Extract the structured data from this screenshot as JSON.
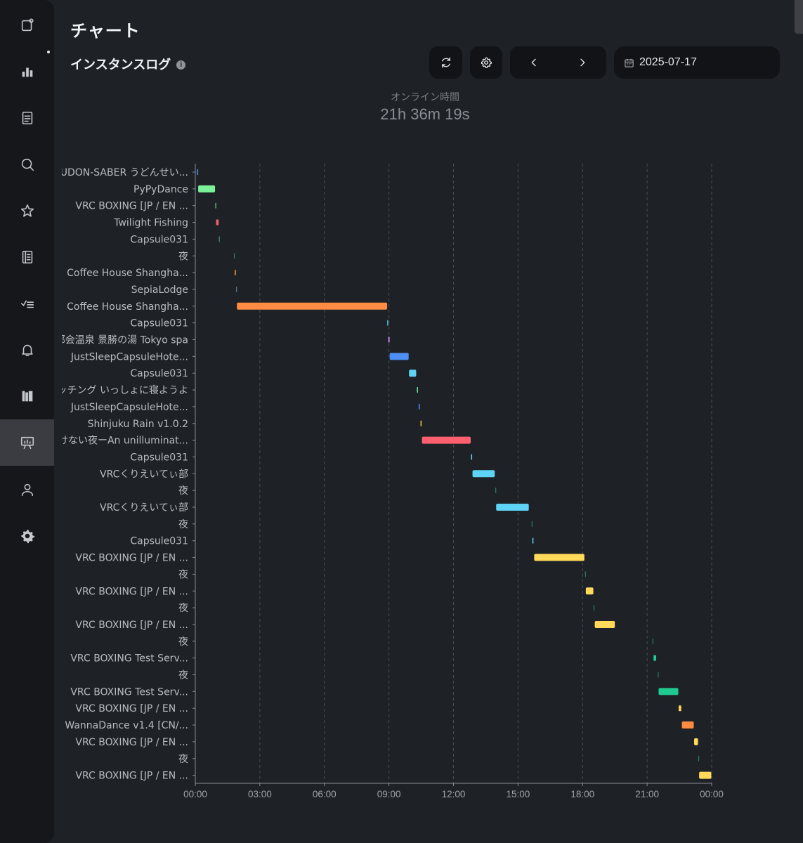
{
  "page": {
    "title": "チャート"
  },
  "section": {
    "title": "インスタンスログ",
    "info_icon": "info-icon"
  },
  "sidebar": {
    "items": [
      {
        "icon": "profile-card-icon",
        "active": false
      },
      {
        "icon": "bar-chart-icon",
        "active": false
      },
      {
        "icon": "document-icon",
        "active": false
      },
      {
        "icon": "search-icon",
        "active": false
      },
      {
        "icon": "star-icon",
        "active": false
      },
      {
        "icon": "notebook-icon",
        "active": false
      },
      {
        "icon": "checklist-icon",
        "active": false
      },
      {
        "icon": "bell-icon",
        "active": false
      },
      {
        "icon": "library-icon",
        "active": false
      },
      {
        "icon": "presentation-chart-icon",
        "active": true
      },
      {
        "icon": "user-icon",
        "active": false
      },
      {
        "icon": "gear-icon",
        "active": false
      }
    ]
  },
  "toolbar": {
    "refresh_icon": "refresh-icon",
    "settings_icon": "gear-icon",
    "prev_icon": "chevron-left-icon",
    "next_icon": "chevron-right-icon",
    "date_icon": "calendar-icon",
    "date_value": "2025-07-17"
  },
  "online": {
    "label": "オンライン時間",
    "value": "21h 36m 19s"
  },
  "chart_data": {
    "type": "bar",
    "orientation": "horizontal-timeline",
    "xlabel": "",
    "ylabel": "",
    "x_range": [
      "00:00",
      "24:00"
    ],
    "x_ticks": [
      "00:00",
      "03:00",
      "06:00",
      "09:00",
      "12:00",
      "15:00",
      "18:00",
      "21:00",
      "00:00"
    ],
    "grid": "vertical-dashed",
    "categories": [
      "UDON-SABER うどんせい...",
      "PyPyDance",
      "VRC BOXING [JP / EN ...",
      "Twilight Fishing",
      "Capsule031",
      "夜",
      "Coffee House Shangha...",
      "SepiaLodge",
      "Coffee House Shangha...",
      "Capsule031",
      "都会温泉 景勝の湯 Tokyo spa",
      "JustSleepCapsuleHote...",
      "Capsule031",
      "マッチング いっしょに寝ようよ",
      "JustSleepCapsuleHote...",
      "Shinjuku Rain v1.0.2",
      "明けない夜ーAn unilluminat...",
      "Capsule031",
      "VRCくりえいてぃ部",
      "夜",
      "VRCくりえいてぃ部",
      "夜",
      "Capsule031",
      "VRC BOXING [JP / EN ...",
      "夜",
      "VRC BOXING [JP / EN ...",
      "夜",
      "VRC BOXING [JP / EN ...",
      "夜",
      "VRC BOXING Test Serv...",
      "夜",
      "VRC BOXING Test Serv...",
      "VRC BOXING [JP / EN ...",
      "WannaDance v1.4 [CN/...",
      "VRC BOXING [JP / EN ...",
      "夜",
      "VRC BOXING [JP / EN ..."
    ],
    "series": [
      {
        "values": [
          {
            "start": "00:05",
            "end": "00:08",
            "color": "#4e8ff5"
          },
          {
            "start": "00:08",
            "end": "00:55",
            "color": "#7bf29a"
          },
          {
            "start": "00:56",
            "end": "00:57",
            "color": "#7bf29a"
          },
          {
            "start": "00:58",
            "end": "01:05",
            "color": "#f25f6a"
          },
          {
            "start": "01:06",
            "end": "01:07",
            "color": "#4fa0a0"
          },
          {
            "start": "01:48",
            "end": "01:49",
            "color": "#2f8f7a"
          },
          {
            "start": "01:50",
            "end": "01:53",
            "color": "#f49a3d"
          },
          {
            "start": "01:54",
            "end": "01:55",
            "color": "#6e8aa0"
          },
          {
            "start": "01:56",
            "end": "08:55",
            "color": "#ff8c42"
          },
          {
            "start": "08:55",
            "end": "08:58",
            "color": "#4fb6d6"
          },
          {
            "start": "08:58",
            "end": "09:02",
            "color": "#c27ce0"
          },
          {
            "start": "09:02",
            "end": "09:55",
            "color": "#4e8ff5"
          },
          {
            "start": "09:56",
            "end": "10:16",
            "color": "#5fd3f5"
          },
          {
            "start": "10:18",
            "end": "10:21",
            "color": "#6ee0a0"
          },
          {
            "start": "10:23",
            "end": "10:26",
            "color": "#4e8ff5"
          },
          {
            "start": "10:28",
            "end": "10:31",
            "color": "#e6c94a"
          },
          {
            "start": "10:32",
            "end": "12:48",
            "color": "#ff5f6e"
          },
          {
            "start": "12:49",
            "end": "12:52",
            "color": "#5fd3f5"
          },
          {
            "start": "12:53",
            "end": "13:55",
            "color": "#5fd3f5"
          },
          {
            "start": "13:57",
            "end": "13:58",
            "color": "#2f8f7a"
          },
          {
            "start": "13:59",
            "end": "15:30",
            "color": "#5fd3f5"
          },
          {
            "start": "15:38",
            "end": "15:39",
            "color": "#2f8f7a"
          },
          {
            "start": "15:40",
            "end": "15:43",
            "color": "#5fd3f5"
          },
          {
            "start": "15:45",
            "end": "18:05",
            "color": "#ffd95a"
          },
          {
            "start": "18:07",
            "end": "18:08",
            "color": "#2f8f7a"
          },
          {
            "start": "18:09",
            "end": "18:30",
            "color": "#ffd95a"
          },
          {
            "start": "18:31",
            "end": "18:32",
            "color": "#2f8f7a"
          },
          {
            "start": "18:34",
            "end": "19:30",
            "color": "#ffd95a"
          },
          {
            "start": "21:15",
            "end": "21:16",
            "color": "#2f8f7a"
          },
          {
            "start": "21:18",
            "end": "21:25",
            "color": "#1fd19a"
          },
          {
            "start": "21:30",
            "end": "21:31",
            "color": "#2f8f7a"
          },
          {
            "start": "21:32",
            "end": "22:27",
            "color": "#1fc98f"
          },
          {
            "start": "22:28",
            "end": "22:35",
            "color": "#ffd95a"
          },
          {
            "start": "22:37",
            "end": "23:10",
            "color": "#ff8c42"
          },
          {
            "start": "23:11",
            "end": "23:22",
            "color": "#ffd95a"
          },
          {
            "start": "23:23",
            "end": "23:24",
            "color": "#2f8f7a"
          },
          {
            "start": "23:25",
            "end": "23:59",
            "color": "#ffd95a"
          }
        ]
      }
    ]
  }
}
